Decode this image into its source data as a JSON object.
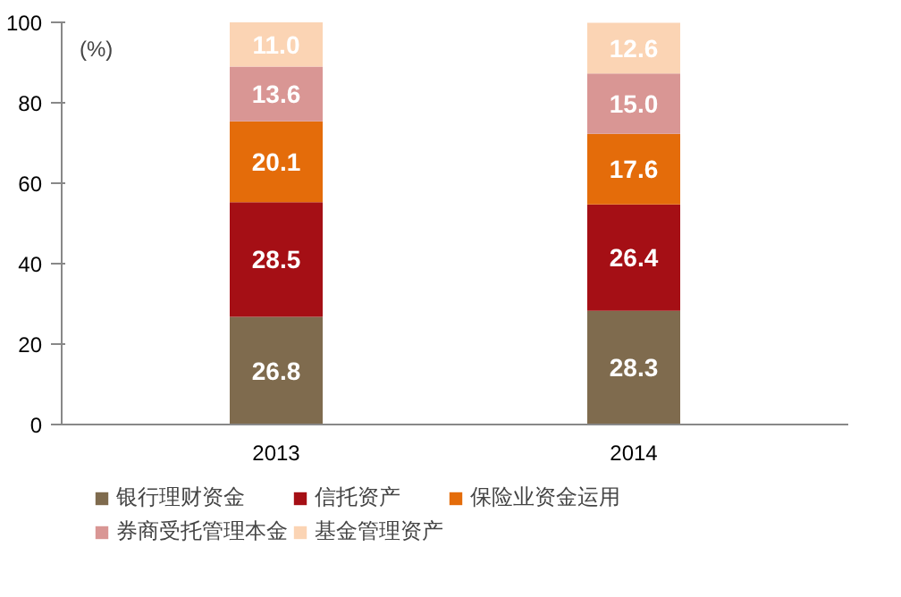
{
  "chart_data": {
    "type": "bar",
    "stacked": true,
    "categories": [
      "2013",
      "2014"
    ],
    "series": [
      {
        "name": "银行理财资金",
        "color": "#7f6b4e",
        "values": [
          26.8,
          28.3
        ],
        "value_labels": [
          "26.8",
          "28.3"
        ]
      },
      {
        "name": "信托资产",
        "color": "#a50f15",
        "values": [
          28.5,
          26.4
        ],
        "value_labels": [
          "28.5",
          "26.4"
        ]
      },
      {
        "name": "保险业资金运用",
        "color": "#e46c0a",
        "values": [
          20.1,
          17.6
        ],
        "value_labels": [
          "20.1",
          "17.6"
        ]
      },
      {
        "name": "券商受托管理本金",
        "color": "#d99694",
        "values": [
          13.6,
          15.0
        ],
        "value_labels": [
          "13.6",
          "15.0"
        ]
      },
      {
        "name": "基金管理资产",
        "color": "#fbd4b4",
        "values": [
          11.0,
          12.6
        ],
        "value_labels": [
          "11.0",
          "12.6"
        ]
      }
    ],
    "ylim": [
      0,
      100
    ],
    "yticks": [
      0,
      20,
      40,
      60,
      80,
      100
    ],
    "legend": "bottom",
    "annotations": [
      "(%)"
    ]
  }
}
